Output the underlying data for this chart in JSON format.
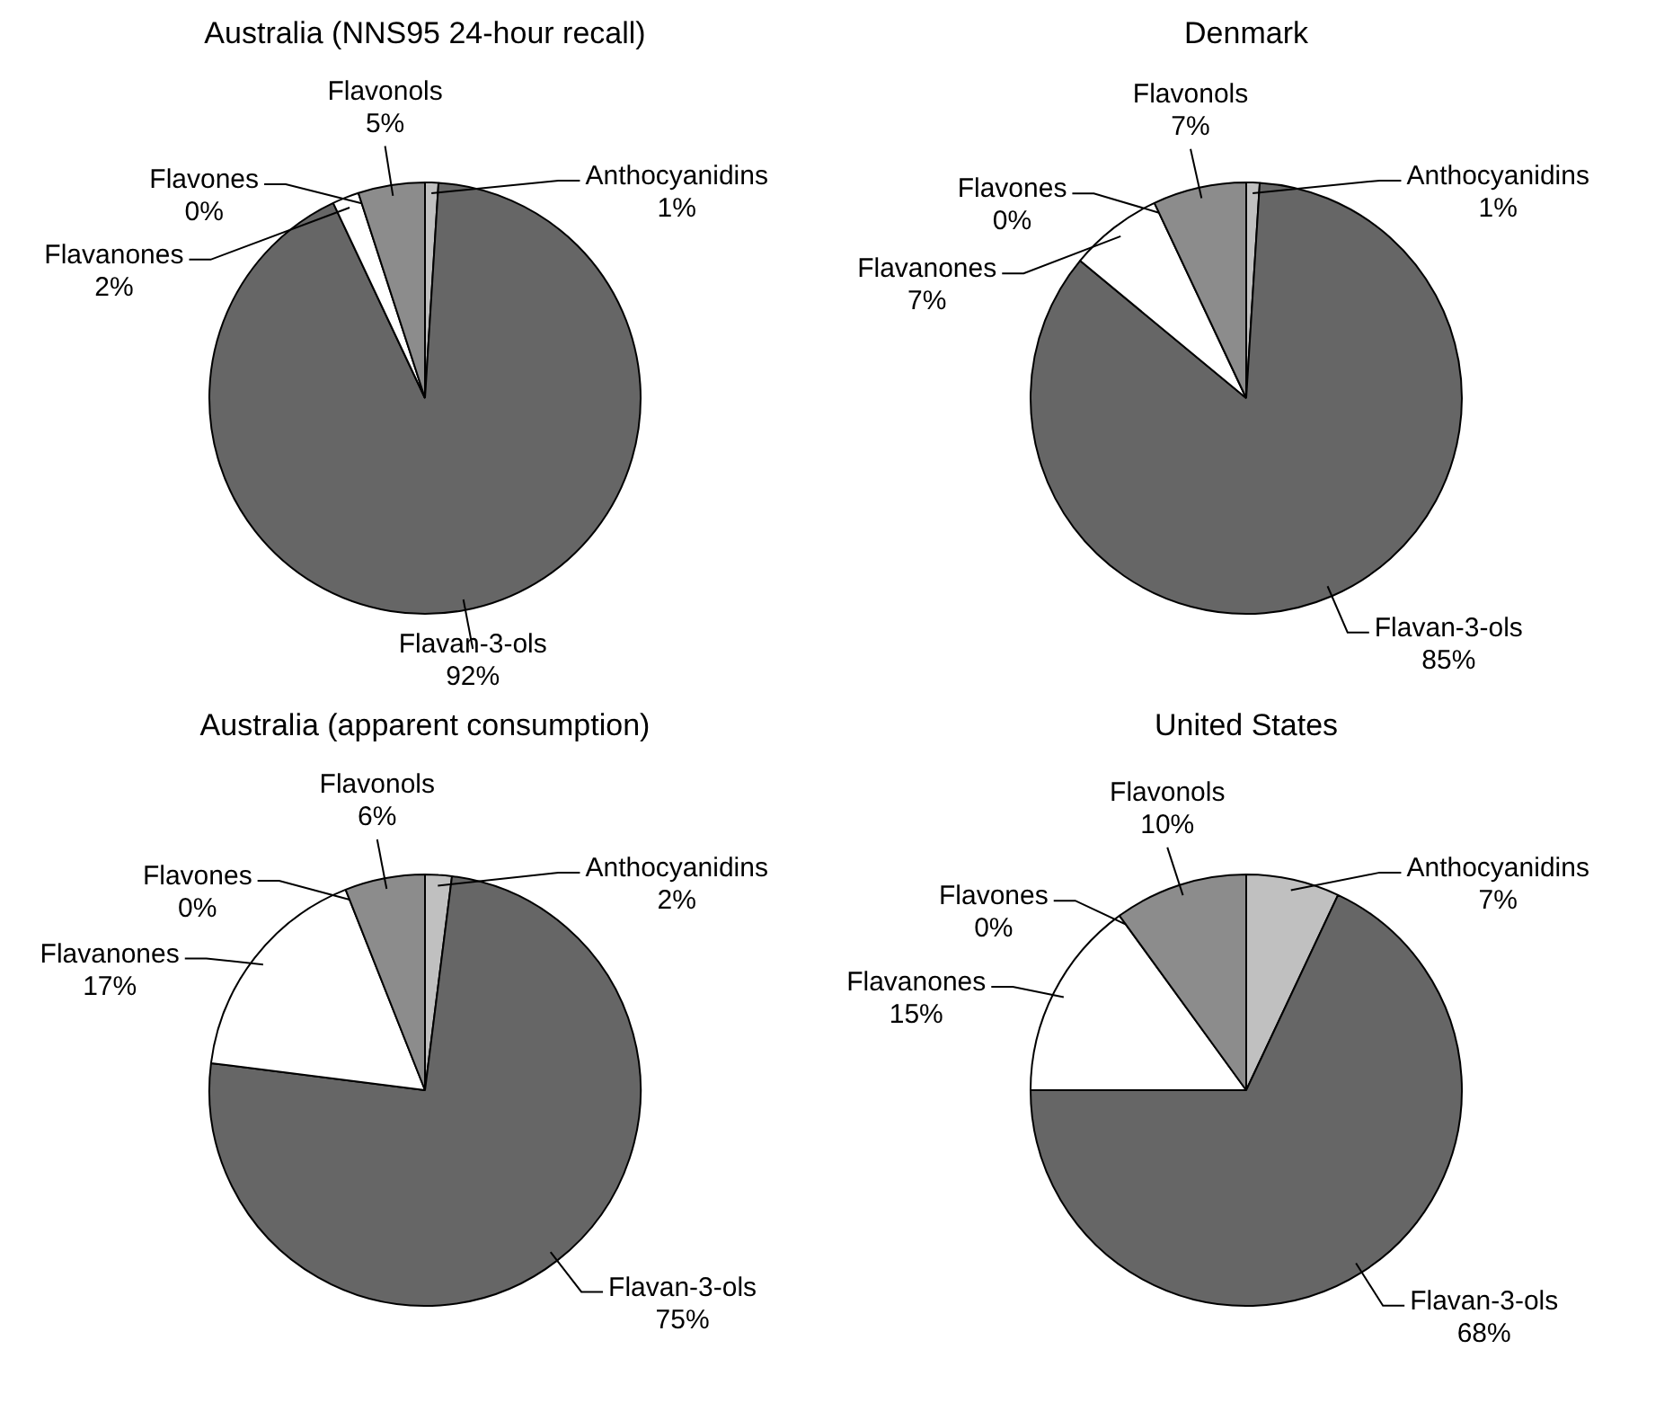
{
  "chart_data": [
    {
      "type": "pie",
      "title": "Australia (NNS95 24-hour recall)",
      "categories": [
        "Anthocyanidins",
        "Flavan-3-ols",
        "Flavanones",
        "Flavones",
        "Flavonols"
      ],
      "values": [
        1,
        92,
        2,
        0,
        5
      ],
      "value_labels": [
        "1%",
        "92%",
        "2%",
        "0%",
        "5%"
      ],
      "colors": [
        "#c0c0c0",
        "#666666",
        "#ffffff",
        "#ffffff",
        "#8c8c8c"
      ]
    },
    {
      "type": "pie",
      "title": "Denmark",
      "categories": [
        "Anthocyanidins",
        "Flavan-3-ols",
        "Flavanones",
        "Flavones",
        "Flavonols"
      ],
      "values": [
        1,
        85,
        7,
        0,
        7
      ],
      "value_labels": [
        "1%",
        "85%",
        "7%",
        "0%",
        "7%"
      ],
      "colors": [
        "#c0c0c0",
        "#666666",
        "#ffffff",
        "#ffffff",
        "#8c8c8c"
      ]
    },
    {
      "type": "pie",
      "title": "Australia (apparent consumption)",
      "categories": [
        "Anthocyanidins",
        "Flavan-3-ols",
        "Flavanones",
        "Flavones",
        "Flavonols"
      ],
      "values": [
        2,
        75,
        17,
        0,
        6
      ],
      "value_labels": [
        "2%",
        "75%",
        "17%",
        "0%",
        "6%"
      ],
      "colors": [
        "#c0c0c0",
        "#666666",
        "#ffffff",
        "#ffffff",
        "#8c8c8c"
      ]
    },
    {
      "type": "pie",
      "title": "United States",
      "categories": [
        "Anthocyanidins",
        "Flavan-3-ols",
        "Flavanones",
        "Flavones",
        "Flavonols"
      ],
      "values": [
        7,
        68,
        15,
        0,
        10
      ],
      "value_labels": [
        "7%",
        "68%",
        "15%",
        "0%",
        "10%"
      ],
      "colors": [
        "#c0c0c0",
        "#666666",
        "#ffffff",
        "#ffffff",
        "#8c8c8c"
      ]
    }
  ]
}
